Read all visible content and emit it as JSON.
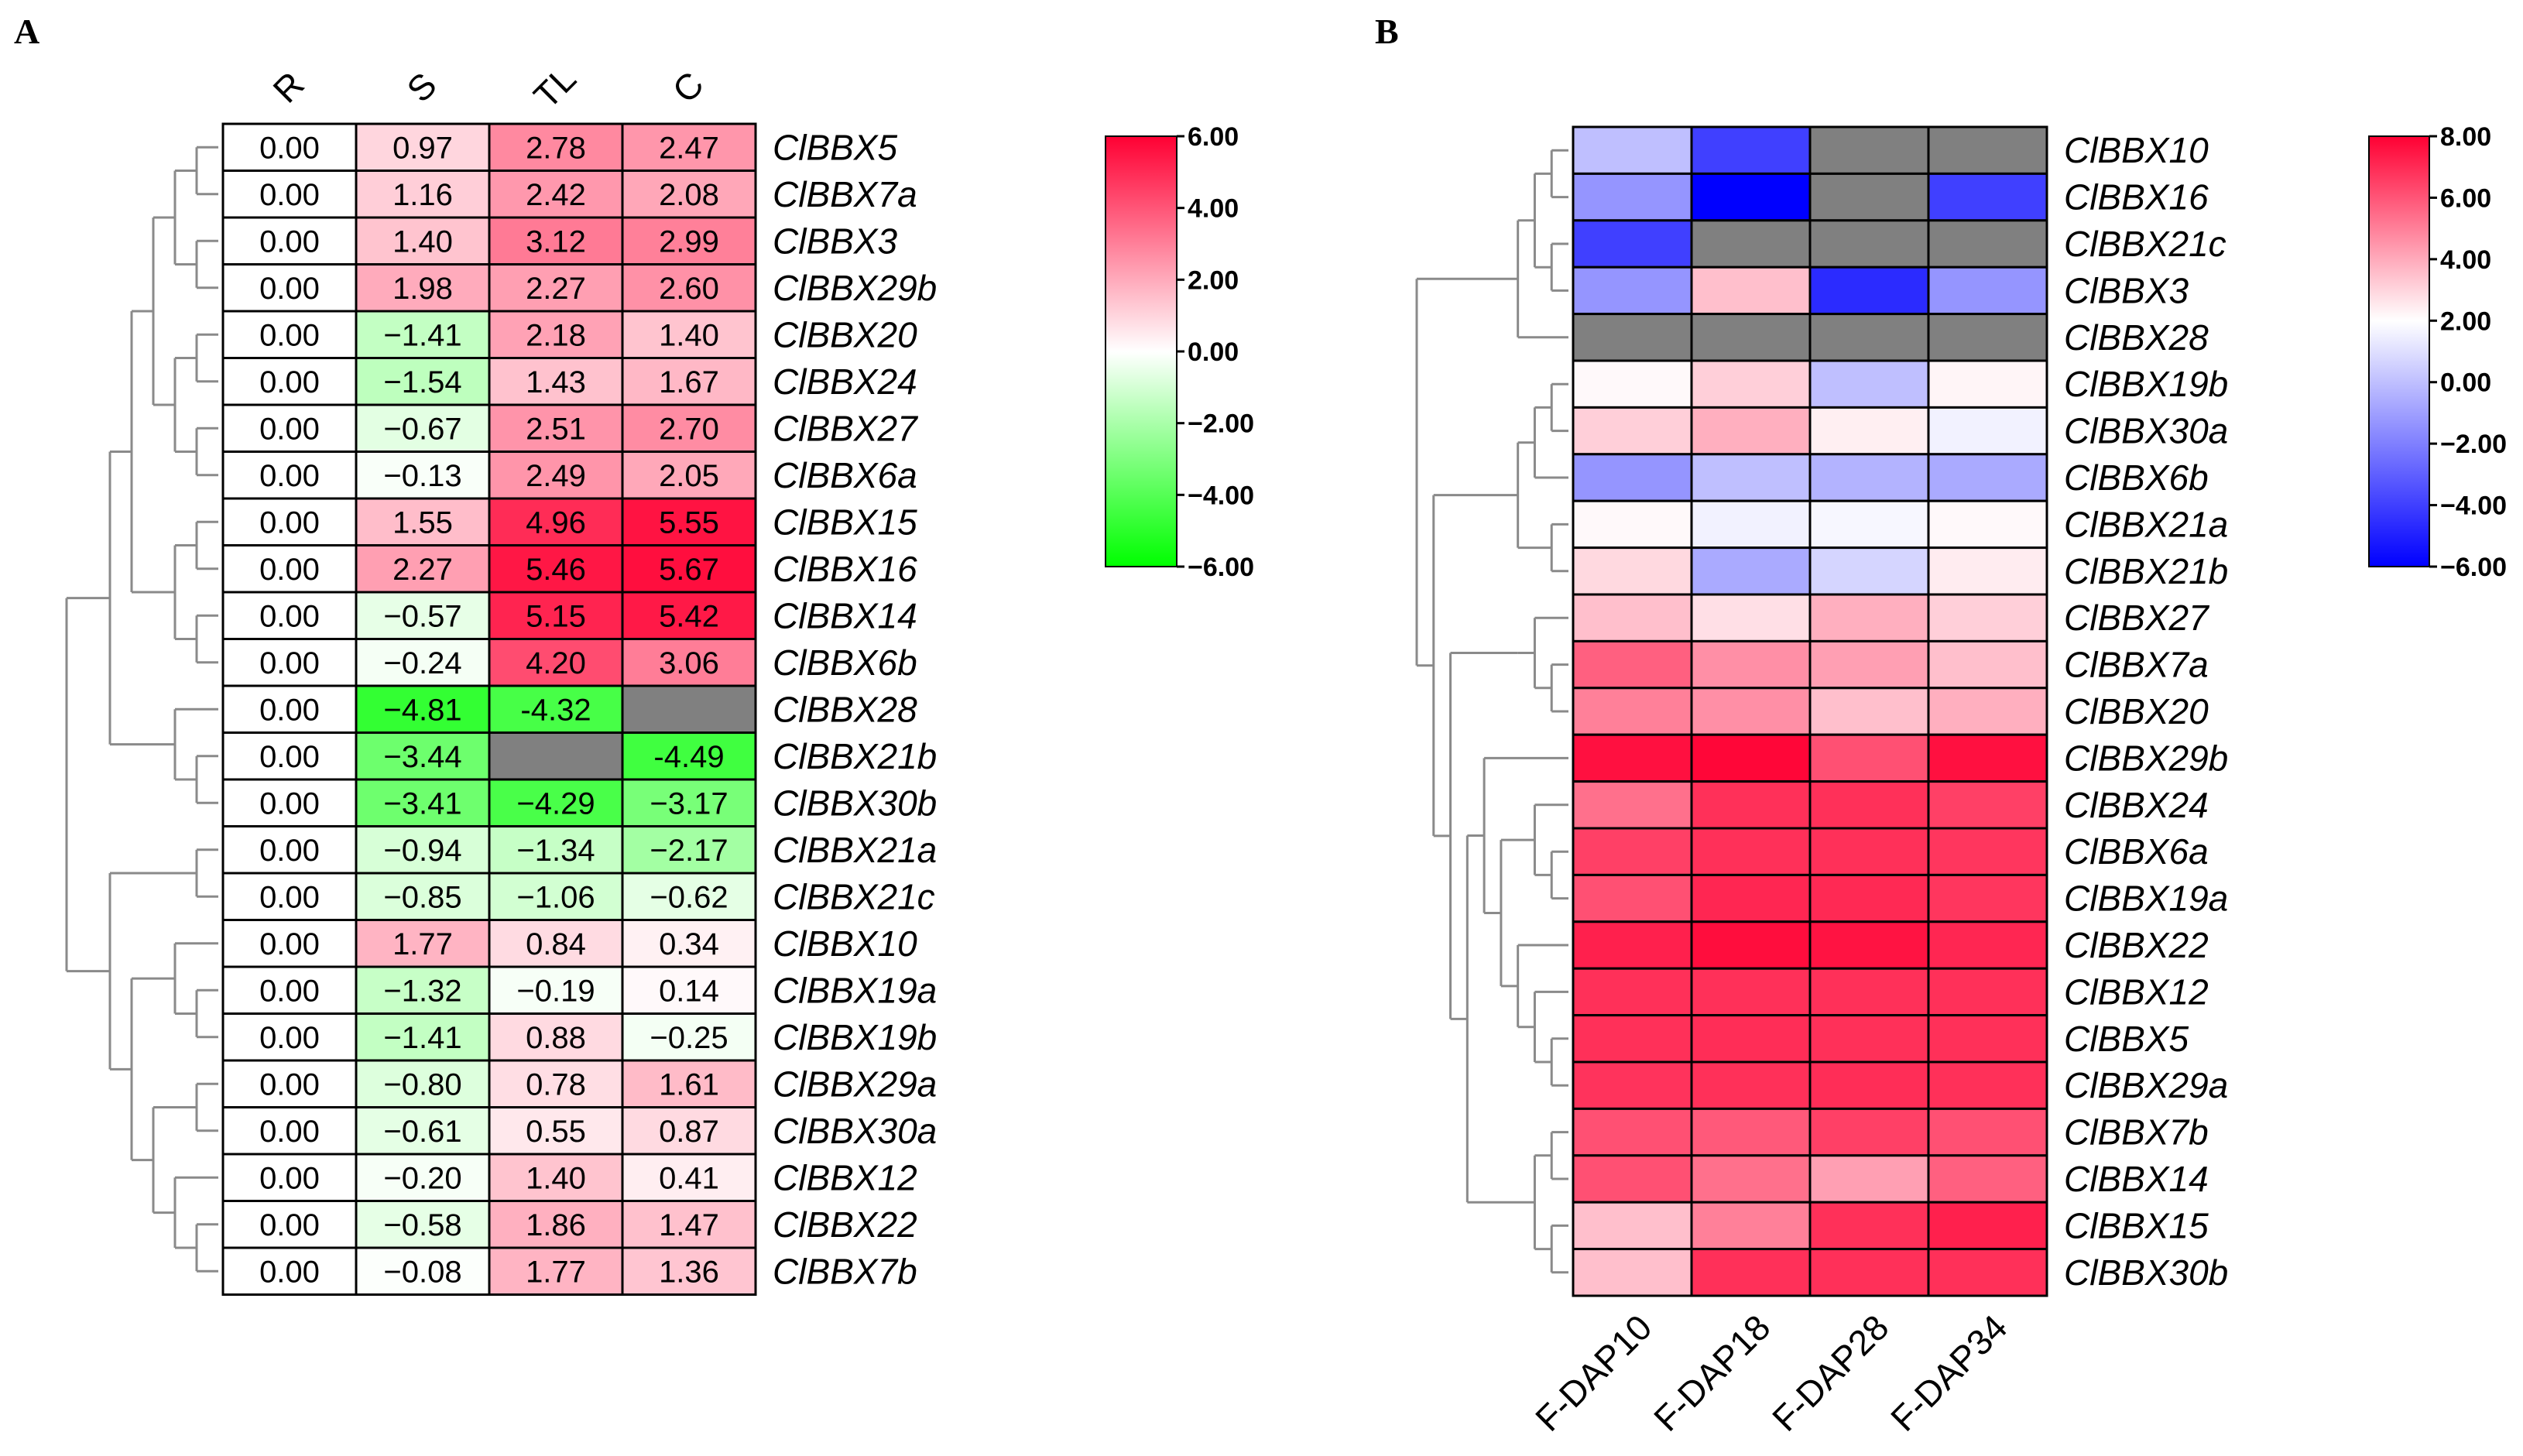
{
  "chart_data": [
    {
      "type": "heatmap",
      "panel_label": "A",
      "columns": [
        "R",
        "S",
        "TL",
        "C"
      ],
      "rows": [
        "ClBBX5",
        "ClBBX7a",
        "ClBBX3",
        "ClBBX29b",
        "ClBBX20",
        "ClBBX24",
        "ClBBX27",
        "ClBBX6a",
        "ClBBX15",
        "ClBBX16",
        "ClBBX14",
        "ClBBX6b",
        "ClBBX28",
        "ClBBX21b",
        "ClBBX30b",
        "ClBBX21a",
        "ClBBX21c",
        "ClBBX10",
        "ClBBX19a",
        "ClBBX19b",
        "ClBBX29a",
        "ClBBX30a",
        "ClBBX12",
        "ClBBX22",
        "ClBBX7b"
      ],
      "labels": [
        [
          "0.00",
          "0.97",
          "2.78",
          "2.47"
        ],
        [
          "0.00",
          "1.16",
          "2.42",
          "2.08"
        ],
        [
          "0.00",
          "1.40",
          "3.12",
          "2.99"
        ],
        [
          "0.00",
          "1.98",
          "2.27",
          "2.60"
        ],
        [
          "0.00",
          "−1.41",
          "2.18",
          "1.40"
        ],
        [
          "0.00",
          "−1.54",
          "1.43",
          "1.67"
        ],
        [
          "0.00",
          "−0.67",
          "2.51",
          "2.70"
        ],
        [
          "0.00",
          "−0.13",
          "2.49",
          "2.05"
        ],
        [
          "0.00",
          "1.55",
          "4.96",
          "5.55"
        ],
        [
          "0.00",
          "2.27",
          "5.46",
          "5.67"
        ],
        [
          "0.00",
          "−0.57",
          "5.15",
          "5.42"
        ],
        [
          "0.00",
          "−0.24",
          "4.20",
          "3.06"
        ],
        [
          "0.00",
          "−4.81",
          "-4.32",
          ""
        ],
        [
          "0.00",
          "−3.44",
          "",
          "-4.49"
        ],
        [
          "0.00",
          "−3.41",
          "−4.29",
          "−3.17"
        ],
        [
          "0.00",
          "−0.94",
          "−1.34",
          "−2.17"
        ],
        [
          "0.00",
          "−0.85",
          "−1.06",
          "−0.62"
        ],
        [
          "0.00",
          "1.77",
          "0.84",
          "0.34"
        ],
        [
          "0.00",
          "−1.32",
          "−0.19",
          "0.14"
        ],
        [
          "0.00",
          "−1.41",
          "0.88",
          "−0.25"
        ],
        [
          "0.00",
          "−0.80",
          "0.78",
          "1.61"
        ],
        [
          "0.00",
          "−0.61",
          "0.55",
          "0.87"
        ],
        [
          "0.00",
          "−0.20",
          "1.40",
          "0.41"
        ],
        [
          "0.00",
          "−0.58",
          "1.86",
          "1.47"
        ],
        [
          "0.00",
          "−0.08",
          "1.77",
          "1.36"
        ]
      ],
      "values": [
        [
          0,
          0.97,
          2.78,
          2.47
        ],
        [
          0,
          1.16,
          2.42,
          2.08
        ],
        [
          0,
          1.4,
          3.12,
          2.99
        ],
        [
          0,
          1.98,
          2.27,
          2.6
        ],
        [
          0,
          -1.41,
          2.18,
          1.4
        ],
        [
          0,
          -1.54,
          1.43,
          1.67
        ],
        [
          0,
          -0.67,
          2.51,
          2.7
        ],
        [
          0,
          -0.13,
          2.49,
          2.05
        ],
        [
          0,
          1.55,
          4.96,
          5.55
        ],
        [
          0,
          2.27,
          5.46,
          5.67
        ],
        [
          0,
          -0.57,
          5.15,
          5.42
        ],
        [
          0,
          -0.24,
          4.2,
          3.06
        ],
        [
          0,
          -4.81,
          -4.32,
          null
        ],
        [
          0,
          -3.44,
          null,
          -4.49
        ],
        [
          0,
          -3.41,
          -4.29,
          -3.17
        ],
        [
          0,
          -0.94,
          -1.34,
          -2.17
        ],
        [
          0,
          -0.85,
          -1.06,
          -0.62
        ],
        [
          0,
          1.77,
          0.84,
          0.34
        ],
        [
          0,
          -1.32,
          -0.19,
          0.14
        ],
        [
          0,
          -1.41,
          0.88,
          -0.25
        ],
        [
          0,
          -0.8,
          0.78,
          1.61
        ],
        [
          0,
          -0.61,
          0.55,
          0.87
        ],
        [
          0,
          -0.2,
          1.4,
          0.41
        ],
        [
          0,
          -0.58,
          1.86,
          1.47
        ],
        [
          0,
          -0.08,
          1.77,
          1.36
        ]
      ],
      "color_scale": {
        "min": -6,
        "max": 6,
        "low": "#00ff00",
        "mid": "#ffffff",
        "high": "#ff0033",
        "missing": "#808080"
      },
      "legend_ticks": [
        "6.00",
        "4.00",
        "2.00",
        "0.00",
        "−2.00",
        "−4.00",
        "−6.00"
      ]
    },
    {
      "type": "heatmap",
      "panel_label": "B",
      "columns": [
        "F-DAP10",
        "F-DAP18",
        "F-DAP28",
        "F-DAP34"
      ],
      "rows": [
        "ClBBX10",
        "ClBBX16",
        "ClBBX21c",
        "ClBBX3",
        "ClBBX28",
        "ClBBX19b",
        "ClBBX30a",
        "ClBBX6b",
        "ClBBX21a",
        "ClBBX21b",
        "ClBBX27",
        "ClBBX7a",
        "ClBBX20",
        "ClBBX29b",
        "ClBBX24",
        "ClBBX6a",
        "ClBBX19a",
        "ClBBX22",
        "ClBBX12",
        "ClBBX5",
        "ClBBX29a",
        "ClBBX7b",
        "ClBBX14",
        "ClBBX15",
        "ClBBX30b"
      ],
      "values": [
        [
          -1.5,
          -4.5,
          null,
          null
        ],
        [
          -2.5,
          -6.0,
          null,
          -4.5
        ],
        [
          -4.5,
          null,
          null,
          null
        ],
        [
          -2.5,
          2.0,
          -5.0,
          -2.5
        ],
        [
          null,
          null,
          null,
          null
        ],
        [
          0.2,
          1.5,
          -1.5,
          0.3
        ],
        [
          1.5,
          2.5,
          0.5,
          -0.3
        ],
        [
          -2.5,
          -1.5,
          -1.8,
          -2.0
        ],
        [
          0.2,
          -0.3,
          -0.2,
          0.2
        ],
        [
          1.2,
          -2.0,
          -1.0,
          0.6
        ],
        [
          2.0,
          1.0,
          2.5,
          1.5
        ],
        [
          5.0,
          3.5,
          3.0,
          2.0
        ],
        [
          4.0,
          3.5,
          2.0,
          2.5
        ],
        [
          7.5,
          7.8,
          5.5,
          7.5
        ],
        [
          4.5,
          6.5,
          6.5,
          6.0
        ],
        [
          6.0,
          6.5,
          6.5,
          6.3
        ],
        [
          5.5,
          6.8,
          6.7,
          6.3
        ],
        [
          7.0,
          7.6,
          7.4,
          6.8
        ],
        [
          6.5,
          6.5,
          6.5,
          6.5
        ],
        [
          6.5,
          6.6,
          6.5,
          6.5
        ],
        [
          6.4,
          6.5,
          6.6,
          6.5
        ],
        [
          5.5,
          5.2,
          6.0,
          5.5
        ],
        [
          5.5,
          4.5,
          3.0,
          5.0
        ],
        [
          2.0,
          4.0,
          6.5,
          7.0
        ],
        [
          2.0,
          6.5,
          6.5,
          6.5
        ]
      ],
      "color_scale": {
        "min": -6,
        "max": 8,
        "low": "#0000ff",
        "mid": "#ffffff",
        "high": "#ff0033",
        "missing": "#808080"
      },
      "legend_ticks": [
        "8.00",
        "6.00",
        "4.00",
        "2.00",
        "0.00",
        "−2.00",
        "−4.00",
        "−6.00"
      ]
    }
  ]
}
